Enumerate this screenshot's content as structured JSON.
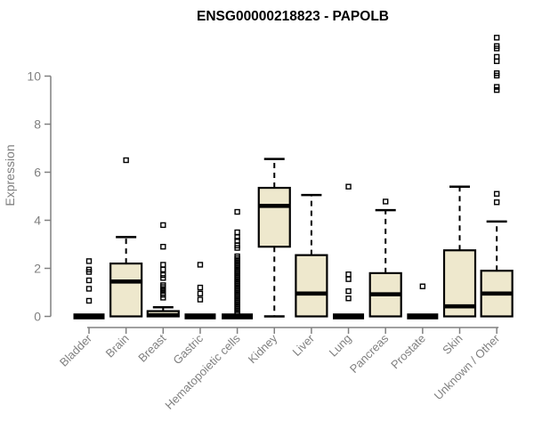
{
  "chart_data": {
    "type": "boxplot",
    "title": "ENSG00000218823 - PAPOLB",
    "ylabel": "Expression",
    "xlabel": "",
    "ylim": [
      0,
      11.7
    ],
    "yticks": [
      0,
      2,
      4,
      6,
      8,
      10
    ],
    "grid": false,
    "legend": "none",
    "colors": {
      "box_fill": "#EEE8CD",
      "box_stroke": "#000000",
      "median": "#000000",
      "outlier": "#000000",
      "axis": "#808080",
      "title": "#000000",
      "background": "#ffffff"
    },
    "categories": [
      "Bladder",
      "Brain",
      "Breast",
      "Gastric",
      "Hematopoietic cells",
      "Kidney",
      "Liver",
      "Lung",
      "Pancreas",
      "Prostate",
      "Skin",
      "Unknown / Other"
    ],
    "series": [
      {
        "category": "Bladder",
        "q1": 0,
        "median": 0,
        "q3": 0,
        "whisker_low": 0,
        "whisker_high": 0,
        "outliers": [
          2.3,
          1.95,
          1.85,
          1.5,
          1.15,
          0.65
        ]
      },
      {
        "category": "Brain",
        "q1": 0,
        "median": 1.45,
        "q3": 2.2,
        "whisker_low": 0,
        "whisker_high": 3.3,
        "outliers": [
          6.5
        ]
      },
      {
        "category": "Breast",
        "q1": 0,
        "median": 0.05,
        "q3": 0.22,
        "whisker_low": 0,
        "whisker_high": 0.38,
        "outliers": [
          3.8,
          2.9,
          2.15,
          1.95,
          1.72,
          1.6,
          1.3,
          1.22,
          1.14,
          1.06,
          0.98,
          0.9,
          0.78
        ]
      },
      {
        "category": "Gastric",
        "q1": 0,
        "median": 0,
        "q3": 0,
        "whisker_low": 0,
        "whisker_high": 0,
        "outliers": [
          2.15,
          1.2,
          0.95,
          0.7
        ]
      },
      {
        "category": "Hematopoietic cells",
        "q1": 0,
        "median": 0,
        "q3": 0,
        "whisker_low": 0,
        "whisker_high": 0,
        "outliers": [
          4.35,
          3.5,
          3.3,
          3.15,
          2.95,
          2.85,
          2.5,
          2.42,
          2.34,
          2.26,
          2.18,
          2.1,
          2.02,
          1.94,
          1.86,
          1.78,
          1.7,
          1.62,
          1.54,
          1.46,
          1.38,
          1.3,
          1.22,
          1.14,
          1.06,
          0.98,
          0.9,
          0.82,
          0.74,
          0.66,
          0.58,
          0.5,
          0.42,
          0.34,
          0.26,
          0.18,
          0.1
        ]
      },
      {
        "category": "Kidney",
        "q1": 2.9,
        "median": 4.6,
        "q3": 5.35,
        "whisker_low": 0,
        "whisker_high": 6.55,
        "outliers": []
      },
      {
        "category": "Liver",
        "q1": 0,
        "median": 0.95,
        "q3": 2.55,
        "whisker_low": 0,
        "whisker_high": 5.05,
        "outliers": []
      },
      {
        "category": "Lung",
        "q1": 0,
        "median": 0,
        "q3": 0,
        "whisker_low": 0,
        "whisker_high": 0,
        "outliers": [
          5.4,
          1.75,
          1.55,
          1.05,
          0.75
        ]
      },
      {
        "category": "Pancreas",
        "q1": 0,
        "median": 0.92,
        "q3": 1.8,
        "whisker_low": 0,
        "whisker_high": 4.42,
        "outliers": [
          4.78
        ]
      },
      {
        "category": "Prostate",
        "q1": 0,
        "median": 0,
        "q3": 0,
        "whisker_low": 0,
        "whisker_high": 0,
        "outliers": [
          1.25
        ]
      },
      {
        "category": "Skin",
        "q1": 0,
        "median": 0.42,
        "q3": 2.75,
        "whisker_low": 0,
        "whisker_high": 5.4,
        "outliers": []
      },
      {
        "category": "Unknown / Other",
        "q1": 0,
        "median": 0.95,
        "q3": 1.9,
        "whisker_low": 0,
        "whisker_high": 3.95,
        "outliers": [
          11.6,
          11.25,
          11.15,
          10.8,
          10.62,
          10.12,
          10.02,
          9.55,
          9.42,
          5.1,
          4.75
        ]
      }
    ]
  }
}
